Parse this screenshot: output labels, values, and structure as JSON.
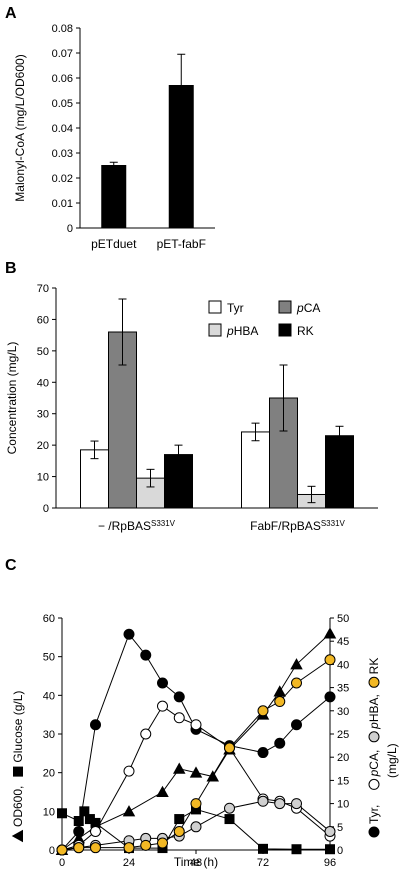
{
  "chart_data": [
    {
      "type": "bar",
      "panel": "A",
      "categories": [
        "pETduet",
        "pET-fabF"
      ],
      "values": [
        0.025,
        0.057
      ],
      "errors": [
        0.0013,
        0.0125
      ],
      "ylabel": "Malonyl-CoA (mg/L/OD600)",
      "ylim": [
        0,
        0.08
      ],
      "yticks": [
        "0",
        "0.01",
        "0.02",
        "0.03",
        "0.04",
        "0.05",
        "0.06",
        "0.07",
        "0.08"
      ],
      "bar_color": "#000000",
      "grid": false
    },
    {
      "type": "bar",
      "panel": "B",
      "group_labels": [
        {
          "main": "− /RpBAS",
          "sup": "S331V"
        },
        {
          "main": "FabF/RpBAS",
          "sup": "S331V"
        }
      ],
      "series": [
        {
          "name": "Tyr",
          "values": [
            18.5,
            24.2
          ],
          "errors": [
            2.8,
            2.8
          ],
          "color": "#ffffff"
        },
        {
          "name": "pCA",
          "values": [
            56.0,
            35.0
          ],
          "errors": [
            10.5,
            10.5
          ],
          "color": "#808080"
        },
        {
          "name": "pHBA",
          "values": [
            9.5,
            4.3
          ],
          "errors": [
            2.8,
            2.6
          ],
          "color": "#d9d9d9"
        },
        {
          "name": "RK",
          "values": [
            17.0,
            23.0
          ],
          "errors": [
            3.0,
            3.0
          ],
          "color": "#000000"
        }
      ],
      "legend_order": [
        "Tyr",
        "pCA",
        "pHBA",
        "RK"
      ],
      "legend_position": "top-right",
      "ylabel": "Concentration (mg/L)",
      "ylim": [
        0,
        70
      ],
      "yticks": [
        "0",
        "10",
        "20",
        "30",
        "40",
        "50",
        "60",
        "70"
      ],
      "grid": false
    },
    {
      "type": "line",
      "panel": "C",
      "xlabel": "Time (h)",
      "xlim": [
        0,
        96
      ],
      "xticks": [
        "0",
        "24",
        "48",
        "72",
        "96"
      ],
      "left_axis": {
        "ylim": [
          0,
          60
        ],
        "yticks": [
          "0",
          "10",
          "20",
          "30",
          "40",
          "50",
          "60"
        ]
      },
      "right_axis": {
        "ylim": [
          0,
          50
        ],
        "yticks": [
          "0",
          "5",
          "10",
          "15",
          "20",
          "25",
          "30",
          "35",
          "40",
          "45",
          "50"
        ]
      },
      "left_label": [
        {
          "marker": "triangle",
          "text": "OD600,"
        },
        {
          "marker": "square",
          "text": "Glucose (g/L)"
        }
      ],
      "right_label": [
        {
          "marker": "circle-black",
          "text": "Tyr,"
        },
        {
          "marker": "circle-white",
          "text": "pCA,"
        },
        {
          "marker": "circle-gray",
          "text": "pHBA,"
        },
        {
          "marker": "circle-orange",
          "text": "RK"
        }
      ],
      "right_label_unit": "(mg/L)",
      "series": [
        {
          "name": "OD600",
          "axis": "left",
          "marker": "triangle",
          "color": "#000000",
          "x": [
            0,
            6,
            12,
            24,
            36,
            42,
            48,
            54,
            60,
            72,
            78,
            84,
            96
          ],
          "y": [
            0,
            3,
            6,
            10,
            15,
            21,
            20,
            19,
            26,
            35,
            41,
            48,
            56
          ]
        },
        {
          "name": "Glucose",
          "axis": "left",
          "marker": "square",
          "color": "#000000",
          "x": [
            0,
            6,
            8,
            10,
            12,
            24,
            36,
            42,
            48,
            60,
            72,
            84,
            96
          ],
          "y": [
            9.5,
            7.5,
            10,
            8,
            7,
            0.5,
            0.5,
            8,
            10.5,
            8,
            0.3,
            0.2,
            0.2
          ]
        },
        {
          "name": "Tyr",
          "axis": "right",
          "marker": "circle-black",
          "color": "#000000",
          "x": [
            0,
            6,
            12,
            24,
            30,
            36,
            42,
            48,
            60,
            72,
            78,
            84,
            96
          ],
          "y": [
            0,
            4,
            27,
            46.5,
            42,
            36,
            33,
            26,
            22.5,
            21,
            23,
            27,
            33
          ]
        },
        {
          "name": "pCA",
          "axis": "right",
          "marker": "circle-white",
          "color": "#ffffff",
          "x": [
            0,
            6,
            12,
            24,
            30,
            36,
            42,
            48,
            60,
            72,
            78,
            84,
            96
          ],
          "y": [
            0,
            1,
            4,
            17,
            25,
            31,
            28.5,
            27,
            22,
            11,
            10.5,
            9,
            3
          ]
        },
        {
          "name": "pHBA",
          "axis": "right",
          "marker": "circle-gray",
          "color": "#d0d0d0",
          "x": [
            0,
            6,
            12,
            24,
            30,
            36,
            42,
            48,
            60,
            72,
            78,
            84,
            96
          ],
          "y": [
            0,
            0.5,
            1,
            2,
            2.5,
            2.5,
            3,
            5,
            9,
            10.5,
            10,
            10,
            4
          ]
        },
        {
          "name": "RK",
          "axis": "right",
          "marker": "circle-orange",
          "color": "#f2b824",
          "x": [
            0,
            6,
            12,
            24,
            30,
            36,
            42,
            48,
            60,
            72,
            78,
            84,
            96
          ],
          "y": [
            0,
            0.5,
            0.5,
            0.5,
            1,
            1.5,
            4,
            10,
            22,
            30,
            32,
            36,
            41
          ]
        }
      ],
      "grid": false
    }
  ]
}
